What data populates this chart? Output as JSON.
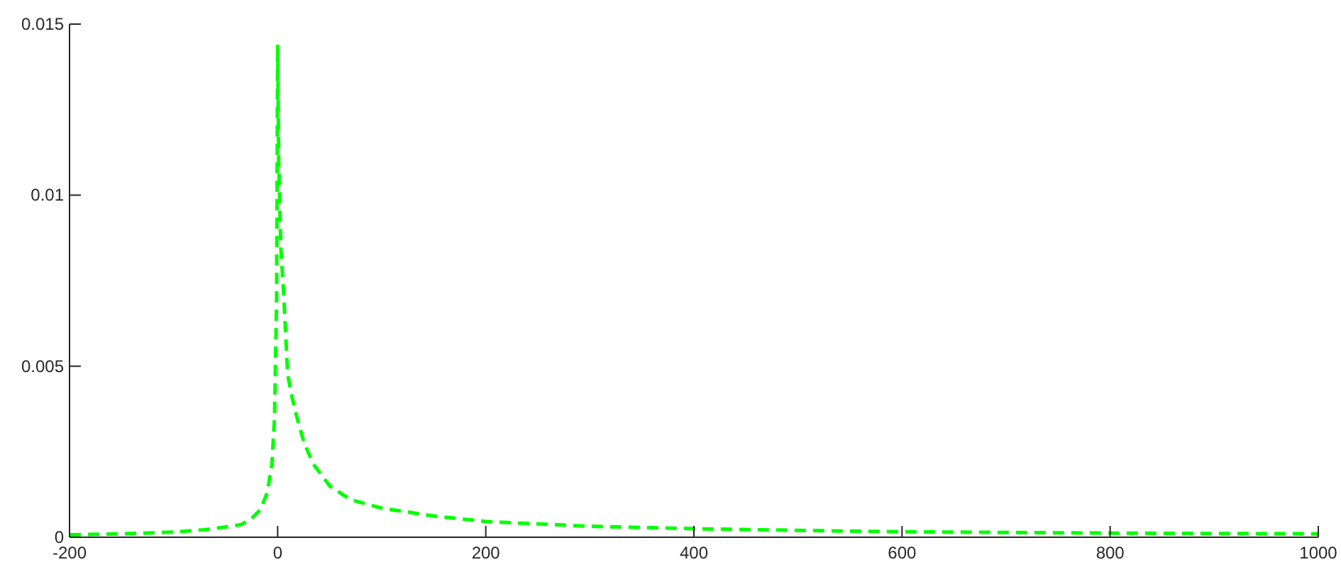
{
  "chart_data": {
    "type": "line",
    "xlim": [
      -200,
      1000
    ],
    "xticks": [
      -200,
      0,
      200,
      400,
      600,
      800,
      1000
    ],
    "ylim": [
      0,
      0.015
    ],
    "yticks": [
      0,
      0.005,
      0.01,
      0.015
    ],
    "grid": false,
    "line_style": "dashed",
    "marker": "none",
    "series": [
      {
        "color": "#00ff00",
        "x": [
          -200,
          -150,
          -100,
          -70,
          -50,
          -35,
          -25,
          -17,
          -10,
          -5.5,
          -3,
          -1,
          0,
          1,
          3,
          6,
          9.5,
          13,
          18,
          25,
          34,
          50,
          70,
          100,
          150,
          200,
          300,
          400,
          500,
          600,
          700,
          800,
          900,
          1000
        ],
        "values": [
          7e-05,
          0.0001,
          0.00015,
          0.00022,
          0.0003,
          0.00037,
          0.00055,
          0.00079,
          0.0013,
          0.00215,
          0.0035,
          0.007,
          0.0144,
          0.011,
          0.0085,
          0.007,
          0.0048,
          0.0042,
          0.00356,
          0.0028,
          0.00215,
          0.0015,
          0.0011,
          0.00085,
          0.00062,
          0.00046,
          0.00032,
          0.00025,
          0.0002,
          0.00016,
          0.00014,
          0.00012,
          0.00011,
          0.0001
        ]
      }
    ]
  }
}
